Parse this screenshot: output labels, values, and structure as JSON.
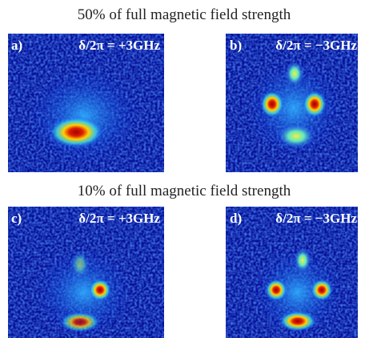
{
  "headings": [
    "50% of full magnetic field strength",
    "10% of full magnetic field strength"
  ],
  "panels": [
    {
      "label": "a)",
      "detuning": "δ/2π = +3GHz"
    },
    {
      "label": "b)",
      "detuning": "δ/2π = −3GHz"
    },
    {
      "label": "c)",
      "detuning": "δ/2π = +3GHz"
    },
    {
      "label": "d)",
      "detuning": "δ/2π = −3GHz"
    }
  ]
}
